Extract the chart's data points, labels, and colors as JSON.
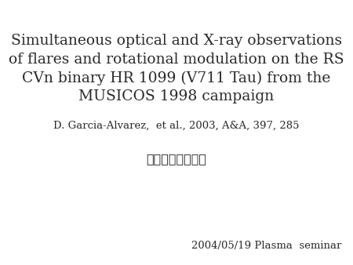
{
  "background_color": "#ffffff",
  "title_lines": [
    "Simultaneous optical and X-ray observations",
    "of flares and rotational modulation on the RS",
    "CVn binary HR 1099 (V711 Tau) from the",
    "MUSICOS 1998 campaign"
  ],
  "title_fontsize": 13.5,
  "title_color": "#2a2a2a",
  "reference": "D. Garcia-Alvarez,  et al., 2003, A&A, 397, 285",
  "reference_fontsize": 9.5,
  "presenter": "発表者：野上大作",
  "presenter_fontsize": 11.5,
  "seminar": "2004/05/19 Plasma  seminar",
  "seminar_fontsize": 9.5
}
